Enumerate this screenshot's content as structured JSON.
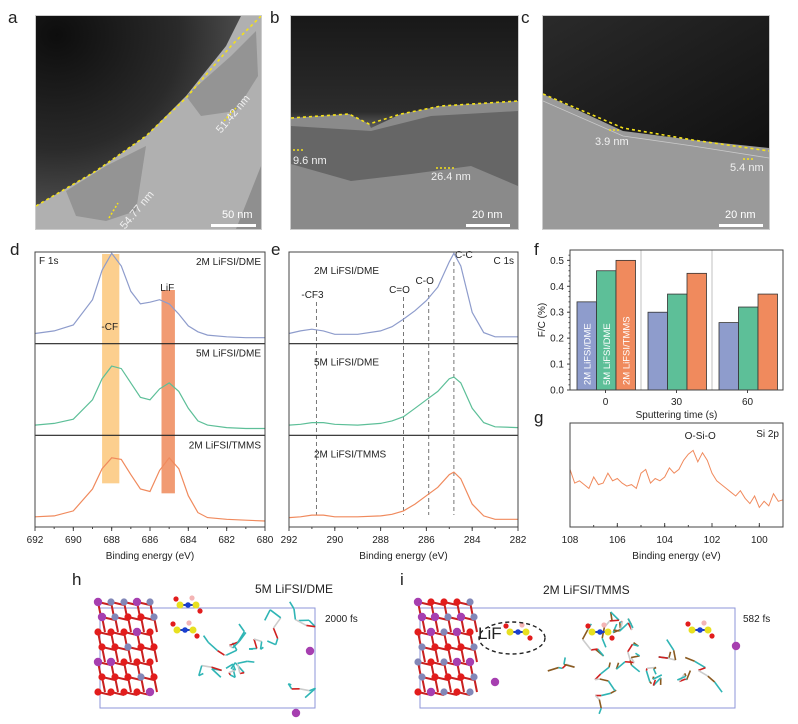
{
  "panel_letters": [
    "a",
    "b",
    "c",
    "d",
    "e",
    "f",
    "g",
    "h",
    "i"
  ],
  "tem": {
    "a": {
      "measurements": [
        "51.42 nm",
        "54.77 nm"
      ],
      "scale": "50 nm"
    },
    "b": {
      "measurements": [
        "9.6 nm",
        "26.4 nm"
      ],
      "scale": "20 nm"
    },
    "c": {
      "measurements": [
        "3.9 nm",
        "5.4 nm"
      ],
      "scale": "20 nm"
    }
  },
  "colors": {
    "dme2": "#8e9ccc",
    "dme5": "#5dbf98",
    "tmms2": "#f08a5d",
    "cf3_band": "#fbc77a",
    "lif_band": "#ef8a5a",
    "annotation_line": "#f4e11a"
  },
  "chart_data": [
    {
      "id": "d",
      "type": "line",
      "title": "F 1s",
      "xlabel": "Binding energy (eV)",
      "ylabel": "",
      "xlim": [
        692,
        680
      ],
      "xticks": [
        692,
        690,
        688,
        686,
        684,
        682,
        680
      ],
      "bands": [
        {
          "label": "-CF3",
          "from": 688.5,
          "to": 687.6
        },
        {
          "label": "LiF",
          "from": 685.4,
          "to": 684.7
        }
      ],
      "series": [
        {
          "name": "2M LiFSI/DME",
          "x": [
            692,
            691,
            690,
            689,
            688.5,
            688,
            687.5,
            687,
            686.5,
            686,
            685.5,
            685,
            684.5,
            684,
            683.5,
            683,
            682,
            681,
            680
          ],
          "y": [
            0.05,
            0.08,
            0.15,
            0.45,
            0.8,
            1.0,
            0.85,
            0.55,
            0.4,
            0.42,
            0.45,
            0.4,
            0.28,
            0.14,
            0.07,
            0.03,
            0.01,
            0.0,
            0.0
          ]
        },
        {
          "name": "5M LiFSI/DME",
          "x": [
            692,
            691,
            690,
            689,
            688.5,
            688,
            687.5,
            687,
            686.5,
            686,
            685.5,
            685,
            684.5,
            684,
            683.5,
            683,
            682,
            681,
            680
          ],
          "y": [
            0.05,
            0.07,
            0.12,
            0.35,
            0.6,
            0.75,
            0.72,
            0.55,
            0.38,
            0.35,
            0.48,
            0.55,
            0.45,
            0.25,
            0.1,
            0.05,
            0.02,
            0.01,
            0.01
          ]
        },
        {
          "name": "2M LiFSI/TMMS",
          "x": [
            692,
            691,
            690,
            689,
            688.5,
            688,
            687.5,
            687,
            686.5,
            686,
            685.5,
            685,
            684.5,
            684,
            683.5,
            683,
            682,
            681,
            680
          ],
          "y": [
            0.05,
            0.06,
            0.12,
            0.38,
            0.62,
            0.75,
            0.73,
            0.55,
            0.38,
            0.35,
            0.6,
            0.75,
            0.62,
            0.3,
            0.1,
            0.04,
            0.02,
            0.01,
            0.0
          ]
        }
      ]
    },
    {
      "id": "e",
      "type": "line",
      "title": "C 1s",
      "xlabel": "Binding energy (eV)",
      "ylabel": "",
      "xlim": [
        292,
        282
      ],
      "xticks": [
        292,
        290,
        288,
        286,
        284,
        282
      ],
      "reference_lines": [
        {
          "label": "-CF3",
          "x": 290.8
        },
        {
          "label": "C=O",
          "x": 287.0
        },
        {
          "label": "C-O",
          "x": 285.9
        },
        {
          "label": "C-C",
          "x": 284.8
        }
      ],
      "series": [
        {
          "name": "2M LiFSI/DME",
          "x": [
            292,
            291.5,
            291,
            290.5,
            290,
            289,
            288,
            287.5,
            287,
            286.5,
            286,
            285.5,
            285,
            284.8,
            284.5,
            284,
            283.5,
            283,
            282
          ],
          "y": [
            0.05,
            0.08,
            0.1,
            0.08,
            0.04,
            0.04,
            0.08,
            0.13,
            0.22,
            0.32,
            0.44,
            0.6,
            0.9,
            1.0,
            0.85,
            0.3,
            0.06,
            0.01,
            0.01
          ]
        },
        {
          "name": "5M LiFSI/DME",
          "x": [
            292,
            291.5,
            291,
            290.5,
            290,
            289,
            288,
            287.5,
            287,
            286.5,
            286,
            285.5,
            285,
            284.8,
            284.5,
            284,
            283.5,
            283,
            282
          ],
          "y": [
            0.05,
            0.06,
            0.08,
            0.08,
            0.06,
            0.05,
            0.07,
            0.1,
            0.15,
            0.25,
            0.35,
            0.45,
            0.6,
            0.62,
            0.55,
            0.25,
            0.08,
            0.03,
            0.02
          ]
        },
        {
          "name": "2M LiFSI/TMMS",
          "x": [
            292,
            291.5,
            291,
            290.5,
            290,
            289,
            288,
            287.5,
            287,
            286.5,
            286,
            285.5,
            285,
            284.8,
            284.5,
            284,
            283.5,
            283,
            282
          ],
          "y": [
            0.04,
            0.05,
            0.07,
            0.07,
            0.05,
            0.05,
            0.06,
            0.08,
            0.12,
            0.2,
            0.3,
            0.4,
            0.55,
            0.58,
            0.5,
            0.2,
            0.06,
            0.02,
            0.02
          ]
        }
      ]
    },
    {
      "id": "f",
      "type": "bar",
      "title": "",
      "xlabel": "Sputtering time (s)",
      "ylabel": "F/C (%)",
      "ylim": [
        0,
        0.54
      ],
      "yticks": [
        0.0,
        0.1,
        0.2,
        0.3,
        0.4,
        0.5
      ],
      "categories": [
        "0",
        "30",
        "60"
      ],
      "series": [
        {
          "name": "2M LiFSI/DME",
          "values": [
            0.34,
            0.3,
            0.26
          ]
        },
        {
          "name": "5M LiFSI/DME",
          "values": [
            0.46,
            0.37,
            0.32
          ]
        },
        {
          "name": "2M LiFSI/TMMS",
          "values": [
            0.5,
            0.45,
            0.37
          ]
        }
      ]
    },
    {
      "id": "g",
      "type": "line",
      "title": "Si 2p",
      "annotation": "O-Si-O",
      "xlabel": "Binding energy (eV)",
      "ylabel": "",
      "xlim": [
        108,
        99
      ],
      "xticks": [
        108,
        106,
        104,
        102,
        100
      ],
      "series": [
        {
          "name": "2M LiFSI/TMMS",
          "x": [
            108,
            107.8,
            107.6,
            107.4,
            107.2,
            107,
            106.8,
            106.6,
            106.4,
            106.2,
            106,
            105.8,
            105.6,
            105.4,
            105.2,
            105,
            104.8,
            104.6,
            104.4,
            104.2,
            104,
            103.8,
            103.6,
            103.4,
            103.2,
            103,
            102.8,
            102.6,
            102.4,
            102.2,
            102,
            101.8,
            101.6,
            101.4,
            101.2,
            101,
            100.8,
            100.6,
            100.4,
            100.2,
            100,
            99.8,
            99.6,
            99.4,
            99.2,
            99
          ],
          "y": [
            0.6,
            0.42,
            0.45,
            0.4,
            0.35,
            0.5,
            0.4,
            0.42,
            0.55,
            0.45,
            0.48,
            0.42,
            0.38,
            0.4,
            0.35,
            0.55,
            0.6,
            0.42,
            0.48,
            0.45,
            0.5,
            0.62,
            0.55,
            0.6,
            0.72,
            0.8,
            0.85,
            0.7,
            0.82,
            0.72,
            0.55,
            0.45,
            0.4,
            0.35,
            0.3,
            0.25,
            0.32,
            0.22,
            0.15,
            0.25,
            0.1,
            0.18,
            0.12,
            0.28,
            0.18,
            0.2
          ]
        }
      ]
    }
  ],
  "md": {
    "h": {
      "title": "5M LiFSI/DME",
      "time": "2000 fs"
    },
    "i": {
      "title": "2M LiFSI/TMMS",
      "time": "582 fs",
      "highlight": "LiF"
    }
  }
}
